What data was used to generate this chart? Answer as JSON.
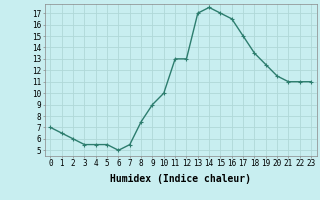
{
  "x": [
    0,
    1,
    2,
    3,
    4,
    5,
    6,
    7,
    8,
    9,
    10,
    11,
    12,
    13,
    14,
    15,
    16,
    17,
    18,
    19,
    20,
    21,
    22,
    23
  ],
  "y": [
    7,
    6.5,
    6,
    5.5,
    5.5,
    5.5,
    5,
    5.5,
    7.5,
    9,
    10,
    13,
    13,
    17,
    17.5,
    17,
    16.5,
    15,
    13.5,
    12.5,
    11.5,
    11,
    11,
    11
  ],
  "line_color": "#2d7d6e",
  "marker_color": "#2d7d6e",
  "bg_color": "#c8eef0",
  "grid_color": "#b0d8d8",
  "xlabel": "Humidex (Indice chaleur)",
  "ylim": [
    4.5,
    17.8
  ],
  "xlim": [
    -0.5,
    23.5
  ],
  "yticks": [
    5,
    6,
    7,
    8,
    9,
    10,
    11,
    12,
    13,
    14,
    15,
    16,
    17
  ],
  "xticks": [
    0,
    1,
    2,
    3,
    4,
    5,
    6,
    7,
    8,
    9,
    10,
    11,
    12,
    13,
    14,
    15,
    16,
    17,
    18,
    19,
    20,
    21,
    22,
    23
  ],
  "tick_fontsize": 5.5,
  "xlabel_fontsize": 7,
  "marker_size": 3,
  "line_width": 1.0
}
